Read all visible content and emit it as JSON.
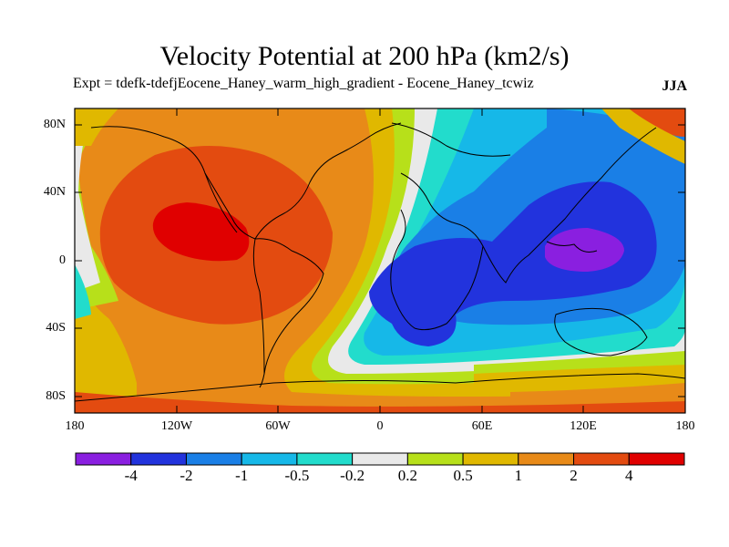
{
  "title": "Velocity Potential at 200 hPa (km2/s)",
  "subtitle": "Expt = tdefk-tdefjEocene_Haney_warm_high_gradient - Eocene_Haney_tcwiz",
  "season": "JJA",
  "y_ticks": [
    "80N",
    "40N",
    "0",
    "40S",
    "80S"
  ],
  "x_ticks": [
    "180",
    "120W",
    "60W",
    "0",
    "60E",
    "120E",
    "180"
  ],
  "colorbar": {
    "labels": [
      "-4",
      "-2",
      "-1",
      "-0.5",
      "-0.2",
      "0.2",
      "0.5",
      "1",
      "2",
      "4"
    ],
    "colors": [
      "#8a1fe0",
      "#2233dd",
      "#1a7fe6",
      "#16b8e8",
      "#22dccc",
      "#e9e9e9",
      "#b7e01a",
      "#e0b800",
      "#e88a18",
      "#e34b10",
      "#e00000"
    ]
  }
}
